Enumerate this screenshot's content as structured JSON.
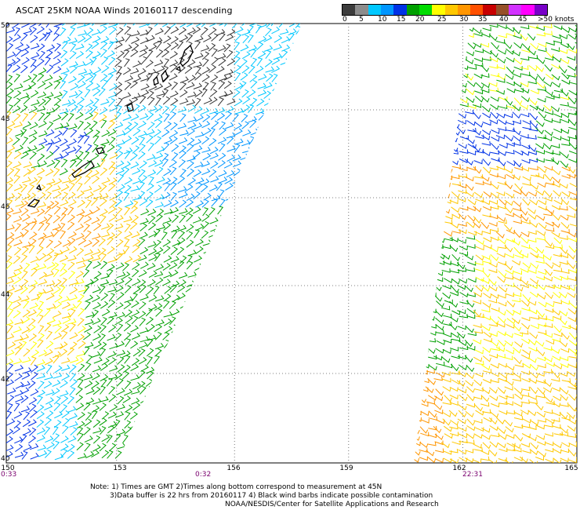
{
  "title": "ASCAT 25KM NOAA Winds 20160117 descending",
  "colorbar": {
    "colors": [
      "#3c3c3c",
      "#8c8c8c",
      "#00c8ff",
      "#0096ff",
      "#0032e6",
      "#00a000",
      "#00dc00",
      "#ffff00",
      "#ffc800",
      "#ff9600",
      "#ff5000",
      "#c80000",
      "#965028",
      "#d232ff",
      "#ff00ff",
      "#7800c8"
    ],
    "labels": [
      "0",
      "5",
      "10",
      "15",
      "20",
      "25",
      "30",
      "35",
      "40",
      "45",
      ">50 knots"
    ]
  },
  "lat_labels": [
    "50",
    "48",
    "46",
    "44",
    "42",
    "40"
  ],
  "lon_labels": [
    "150",
    "153",
    "156",
    "159",
    "162",
    "165"
  ],
  "times": [
    "0:33",
    "0:32",
    "22:31"
  ],
  "notes": [
    "Note: 1) Times are GMT 2)Times along bottom correspond to measurement at 45N",
    "3)Data buffer is 22 hrs from 20160117 4) Black wind barbs indicate possible contamination",
    "NOAA/NESDIS/Center for Satellite Applications and Research"
  ]
}
